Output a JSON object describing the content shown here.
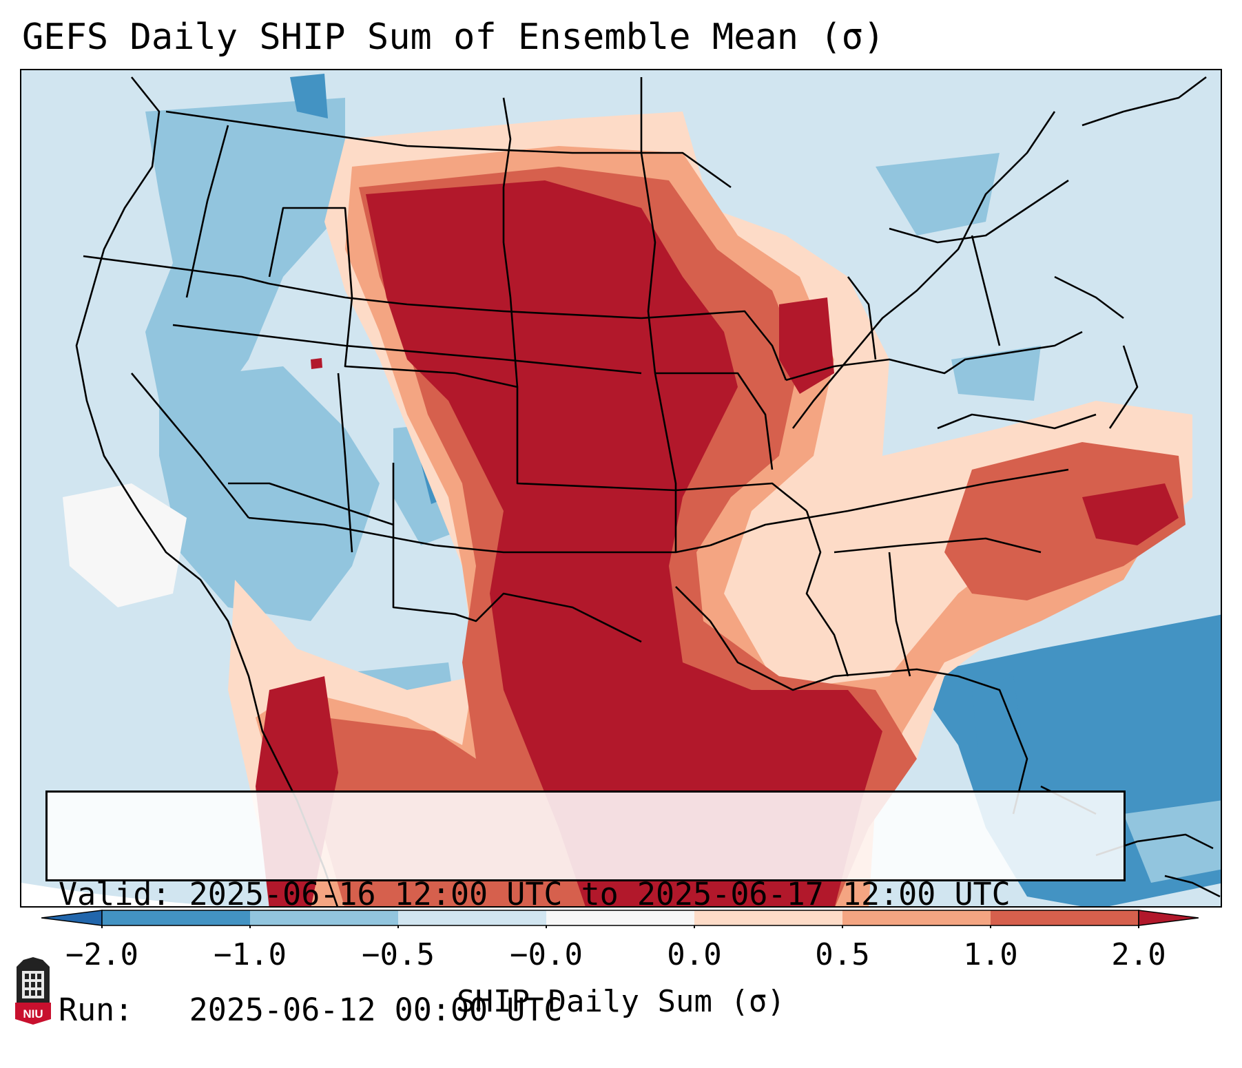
{
  "title": "GEFS Daily SHIP Sum of Ensemble Mean (σ)",
  "info": {
    "valid_label": "Valid:",
    "valid_value": "2025-06-16 12:00 UTC to 2025-06-17 12:00 UTC",
    "run_label": "Run:",
    "run_value": "2025-06-12 00:00 UTC"
  },
  "colorbar": {
    "label": "SHIP Daily Sum (σ)",
    "ticks": [
      "−2.0",
      "−1.0",
      "−0.5",
      "−0.0",
      "0.0",
      "0.5",
      "1.0",
      "2.0"
    ],
    "colors": [
      "#4393c3",
      "#92c5de",
      "#d1e5f0",
      "#f7f7f7",
      "#fddbc7",
      "#f4a582",
      "#d6604d"
    ],
    "extend_low_color": "#2166ac",
    "extend_high_color": "#b2182b"
  },
  "map_colors": {
    "strong_negative": "#4393c3",
    "negative": "#92c5de",
    "weak_negative": "#d1e5f0",
    "neutral": "#f7f7f7",
    "weak_positive": "#fddbc7",
    "positive": "#f4a582",
    "moderate_positive": "#d6604d",
    "strong_positive": "#b2182b"
  },
  "logo": {
    "text": "NIU",
    "icon": "niu-logo-icon"
  }
}
